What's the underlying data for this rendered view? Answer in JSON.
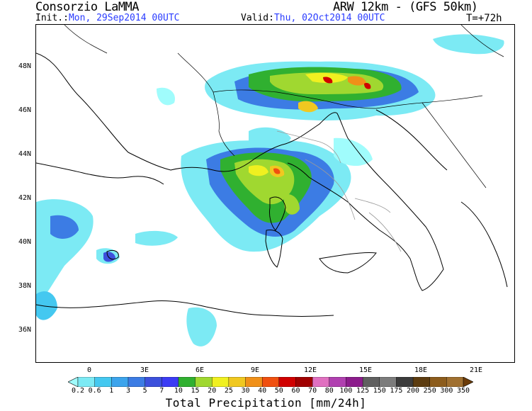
{
  "header": {
    "brand": "Consorzio LaMMA",
    "model": "ARW 12km - (GFS 50km)",
    "init_label": "Init.:",
    "init_value": "Mon, 29Sep2014 00UTC",
    "valid_label": "Valid:",
    "valid_value": "Thu, 02Oct2014 00UTC",
    "timestep": "T=+72h"
  },
  "map": {
    "lat_labels": [
      "48N",
      "46N",
      "44N",
      "42N",
      "40N",
      "38N",
      "36N"
    ],
    "lon_labels": [
      "0",
      "3E",
      "6E",
      "9E",
      "12E",
      "15E",
      "18E",
      "21E"
    ]
  },
  "colorbar": {
    "title": "Total Precipitation [mm/24h]",
    "levels": [
      "0.2",
      "0.6",
      "1",
      "3",
      "5",
      "7",
      "10",
      "15",
      "20",
      "25",
      "30",
      "40",
      "50",
      "60",
      "70",
      "80",
      "100",
      "125",
      "150",
      "175",
      "200",
      "250",
      "300",
      "350"
    ],
    "colors": [
      "#a0fcfc",
      "#7ceaf4",
      "#44c8f0",
      "#3ca4ec",
      "#3c7ce4",
      "#3c50dc",
      "#3c3cf4",
      "#30b030",
      "#a0d830",
      "#f0f020",
      "#f0c820",
      "#f09018",
      "#f05010",
      "#d00000",
      "#a00000",
      "#e070c0",
      "#b040b0",
      "#8c1c8c",
      "#606060",
      "#7c7c7c",
      "#3c3c3c",
      "#5c3c10",
      "#8c5c1c",
      "#a07030",
      "#6c3c08"
    ]
  }
}
